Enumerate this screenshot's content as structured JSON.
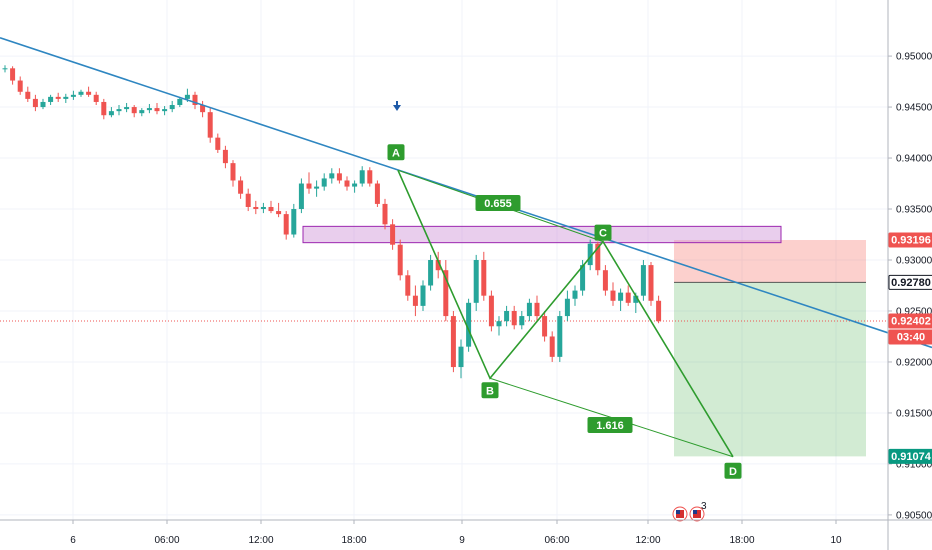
{
  "chart_data": {
    "type": "candlestick",
    "grid": true,
    "y_ticks": [
      "0.95000",
      "0.94500",
      "0.94000",
      "0.93500",
      "0.93000",
      "0.92500",
      "0.92000",
      "0.91500",
      "0.91000",
      "0.90500"
    ],
    "y_tick_values": [
      0.95,
      0.945,
      0.94,
      0.935,
      0.93,
      0.925,
      0.92,
      0.915,
      0.91,
      0.905
    ],
    "ylim": [
      0.9045,
      0.9555
    ],
    "x_ticks": [
      "6",
      "06:00",
      "12:00",
      "18:00",
      "9",
      "06:00",
      "12:00",
      "18:00",
      "10"
    ],
    "price_labels": [
      {
        "text": "0.93196",
        "value": 0.93196,
        "color": "#ef5350"
      },
      {
        "text": "0.92780",
        "value": 0.9278,
        "color": "#131722"
      },
      {
        "text": "0.92402",
        "value": 0.92402,
        "color": "#ef5350"
      },
      {
        "text": "03:40",
        "value": null,
        "color": "#ef5350"
      },
      {
        "text": "0.91074",
        "value": 0.91074,
        "color": "#089981"
      }
    ],
    "pattern_points": [
      {
        "label": "A",
        "price": 0.9388
      },
      {
        "label": "B",
        "price": 0.9184
      },
      {
        "label": "C",
        "price": 0.9318
      },
      {
        "label": "D",
        "price": 0.9107
      }
    ],
    "ratio_labels": [
      "0.655",
      "1.616"
    ],
    "events_badge": "3",
    "colors": {
      "up": "#26a69a",
      "down": "#ef5350",
      "trendline": "#2e86c1",
      "pattern": "#2e9c2e",
      "zone": "#ce93d8"
    },
    "candles": [
      [
        0.9488,
        0.9491,
        0.9484,
        0.9488
      ],
      [
        0.9488,
        0.949,
        0.9472,
        0.9476
      ],
      [
        0.9476,
        0.948,
        0.9462,
        0.9465
      ],
      [
        0.9465,
        0.947,
        0.9455,
        0.9458
      ],
      [
        0.9458,
        0.9462,
        0.9446,
        0.945
      ],
      [
        0.945,
        0.9458,
        0.9448,
        0.9455
      ],
      [
        0.9455,
        0.9462,
        0.9452,
        0.946
      ],
      [
        0.946,
        0.9464,
        0.9455,
        0.9458
      ],
      [
        0.9458,
        0.9463,
        0.9454,
        0.946
      ],
      [
        0.946,
        0.9466,
        0.9457,
        0.9462
      ],
      [
        0.9462,
        0.9467,
        0.946,
        0.9465
      ],
      [
        0.9465,
        0.947,
        0.946,
        0.9462
      ],
      [
        0.9462,
        0.9465,
        0.9452,
        0.9455
      ],
      [
        0.9455,
        0.9458,
        0.9438,
        0.9442
      ],
      [
        0.9442,
        0.945,
        0.944,
        0.9446
      ],
      [
        0.9446,
        0.9452,
        0.9442,
        0.9448
      ],
      [
        0.9448,
        0.9454,
        0.9445,
        0.945
      ],
      [
        0.945,
        0.9452,
        0.944,
        0.9444
      ],
      [
        0.9444,
        0.9449,
        0.9441,
        0.9447
      ],
      [
        0.9447,
        0.9453,
        0.9444,
        0.9449
      ],
      [
        0.9449,
        0.9454,
        0.9443,
        0.9446
      ],
      [
        0.9446,
        0.9451,
        0.9442,
        0.9448
      ],
      [
        0.9448,
        0.9456,
        0.9445,
        0.9452
      ],
      [
        0.9452,
        0.946,
        0.945,
        0.9458
      ],
      [
        0.9458,
        0.9468,
        0.9455,
        0.9462
      ],
      [
        0.9462,
        0.9465,
        0.9448,
        0.9452
      ],
      [
        0.9452,
        0.9456,
        0.944,
        0.9445
      ],
      [
        0.9445,
        0.945,
        0.9415,
        0.942
      ],
      [
        0.942,
        0.9424,
        0.9405,
        0.9408
      ],
      [
        0.9408,
        0.9412,
        0.939,
        0.9395
      ],
      [
        0.9395,
        0.9398,
        0.9372,
        0.9378
      ],
      [
        0.9378,
        0.9382,
        0.936,
        0.9365
      ],
      [
        0.9365,
        0.937,
        0.9348,
        0.9352
      ],
      [
        0.9352,
        0.9358,
        0.9345,
        0.935
      ],
      [
        0.935,
        0.9356,
        0.9346,
        0.9352
      ],
      [
        0.9352,
        0.9358,
        0.9346,
        0.9348
      ],
      [
        0.9348,
        0.9356,
        0.9342,
        0.9345
      ],
      [
        0.9345,
        0.9348,
        0.932,
        0.9325
      ],
      [
        0.9325,
        0.9355,
        0.9322,
        0.935
      ],
      [
        0.935,
        0.938,
        0.9346,
        0.9375
      ],
      [
        0.9375,
        0.9386,
        0.9365,
        0.937
      ],
      [
        0.937,
        0.9378,
        0.9362,
        0.9372
      ],
      [
        0.9372,
        0.9385,
        0.9368,
        0.938
      ],
      [
        0.938,
        0.939,
        0.9375,
        0.9385
      ],
      [
        0.9385,
        0.939,
        0.9375,
        0.9378
      ],
      [
        0.9378,
        0.9382,
        0.9368,
        0.9372
      ],
      [
        0.9372,
        0.9378,
        0.9366,
        0.9375
      ],
      [
        0.9375,
        0.9392,
        0.9372,
        0.9388
      ],
      [
        0.9388,
        0.9391,
        0.9372,
        0.9375
      ],
      [
        0.9375,
        0.9378,
        0.9352,
        0.9355
      ],
      [
        0.9355,
        0.936,
        0.933,
        0.9335
      ],
      [
        0.9335,
        0.934,
        0.931,
        0.9315
      ],
      [
        0.9315,
        0.932,
        0.928,
        0.9285
      ],
      [
        0.9285,
        0.929,
        0.926,
        0.9265
      ],
      [
        0.9265,
        0.9275,
        0.9245,
        0.9255
      ],
      [
        0.9255,
        0.928,
        0.925,
        0.9275
      ],
      [
        0.9275,
        0.9305,
        0.927,
        0.93
      ],
      [
        0.93,
        0.9308,
        0.9282,
        0.929
      ],
      [
        0.929,
        0.93,
        0.924,
        0.9245
      ],
      [
        0.9245,
        0.925,
        0.919,
        0.9195
      ],
      [
        0.9195,
        0.9222,
        0.9184,
        0.9215
      ],
      [
        0.9215,
        0.9262,
        0.921,
        0.9258
      ],
      [
        0.9258,
        0.9305,
        0.925,
        0.93
      ],
      [
        0.93,
        0.9308,
        0.926,
        0.9265
      ],
      [
        0.9265,
        0.927,
        0.923,
        0.9235
      ],
      [
        0.9235,
        0.9245,
        0.9226,
        0.924
      ],
      [
        0.924,
        0.9255,
        0.9235,
        0.925
      ],
      [
        0.925,
        0.9255,
        0.9232,
        0.9236
      ],
      [
        0.9236,
        0.925,
        0.9232,
        0.9245
      ],
      [
        0.9245,
        0.9262,
        0.924,
        0.9258
      ],
      [
        0.9258,
        0.9265,
        0.924,
        0.9245
      ],
      [
        0.9245,
        0.925,
        0.922,
        0.9225
      ],
      [
        0.9225,
        0.923,
        0.92,
        0.9205
      ],
      [
        0.9205,
        0.925,
        0.92,
        0.9245
      ],
      [
        0.9245,
        0.927,
        0.924,
        0.9262
      ],
      [
        0.9262,
        0.9275,
        0.9255,
        0.927
      ],
      [
        0.927,
        0.93,
        0.9265,
        0.9295
      ],
      [
        0.9295,
        0.932,
        0.929,
        0.9316
      ],
      [
        0.9316,
        0.9318,
        0.9285,
        0.929
      ],
      [
        0.929,
        0.9295,
        0.9265,
        0.927
      ],
      [
        0.927,
        0.9278,
        0.9255,
        0.926
      ],
      [
        0.926,
        0.9272,
        0.925,
        0.9268
      ],
      [
        0.9268,
        0.9275,
        0.9255,
        0.9258
      ],
      [
        0.9258,
        0.9268,
        0.9248,
        0.9265
      ],
      [
        0.9265,
        0.93,
        0.926,
        0.9295
      ],
      [
        0.9295,
        0.9298,
        0.9255,
        0.926
      ],
      [
        0.926,
        0.9265,
        0.9238,
        0.924
      ]
    ],
    "future_bars": 20
  }
}
